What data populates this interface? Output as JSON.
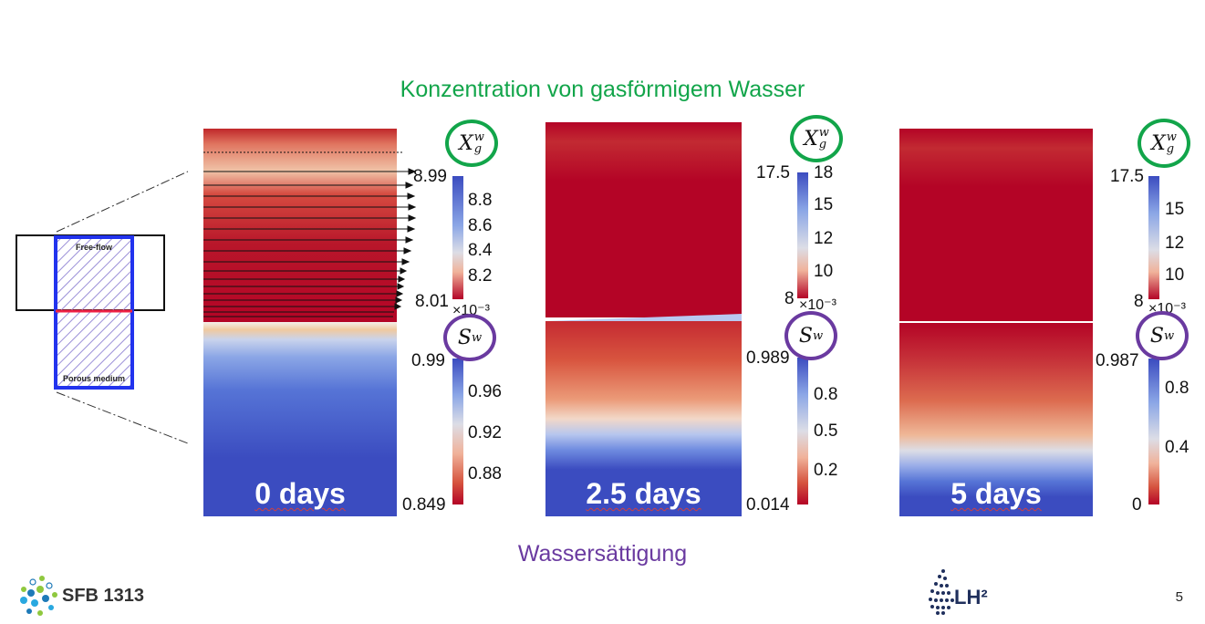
{
  "header": {
    "title": "Konzentration von gasförmigem Wasser"
  },
  "footer": {
    "caption": "Wassersättigung",
    "page_number": "5",
    "sfb_logo_text": "SFB 1313",
    "lh2_logo_text": "LH²"
  },
  "schematic": {
    "free_flow_label": "Free-flow",
    "porous_label": "Porous medium"
  },
  "symbols": {
    "gas_fraction_base": "X",
    "gas_fraction_sub": "g",
    "gas_fraction_sup": "w",
    "saturation_base": "S",
    "saturation_sub": "w",
    "exponent": "×10⁻³"
  },
  "panels": [
    {
      "label": "0 days",
      "gas_colorbar": {
        "max": "8.99",
        "min": "8.01",
        "ticks": [
          "8.8",
          "8.6",
          "8.4",
          "8.2"
        ]
      },
      "sat_colorbar": {
        "max": "0.99",
        "min": "0.849",
        "ticks": [
          "0.96",
          "0.92",
          "0.88"
        ]
      }
    },
    {
      "label": "2.5 days",
      "gas_colorbar": {
        "max": "18",
        "max_left": "17.5",
        "min": "8",
        "ticks": [
          "15",
          "12",
          "10"
        ]
      },
      "sat_colorbar": {
        "max": "0.989",
        "min": "0.014",
        "ticks": [
          "0.8",
          "0.5",
          "0.2"
        ]
      }
    },
    {
      "label": "5 days",
      "gas_colorbar": {
        "max_left": "17.5",
        "min": "8",
        "ticks": [
          "15",
          "12",
          "10"
        ]
      },
      "sat_colorbar": {
        "max": "0.987",
        "min": "0",
        "ticks": [
          "0.8",
          "0.4"
        ]
      }
    }
  ],
  "colors": {
    "green": "#12a54a",
    "purple": "#6a3aa0",
    "red": "#b40426",
    "blue": "#3b4cc0"
  }
}
